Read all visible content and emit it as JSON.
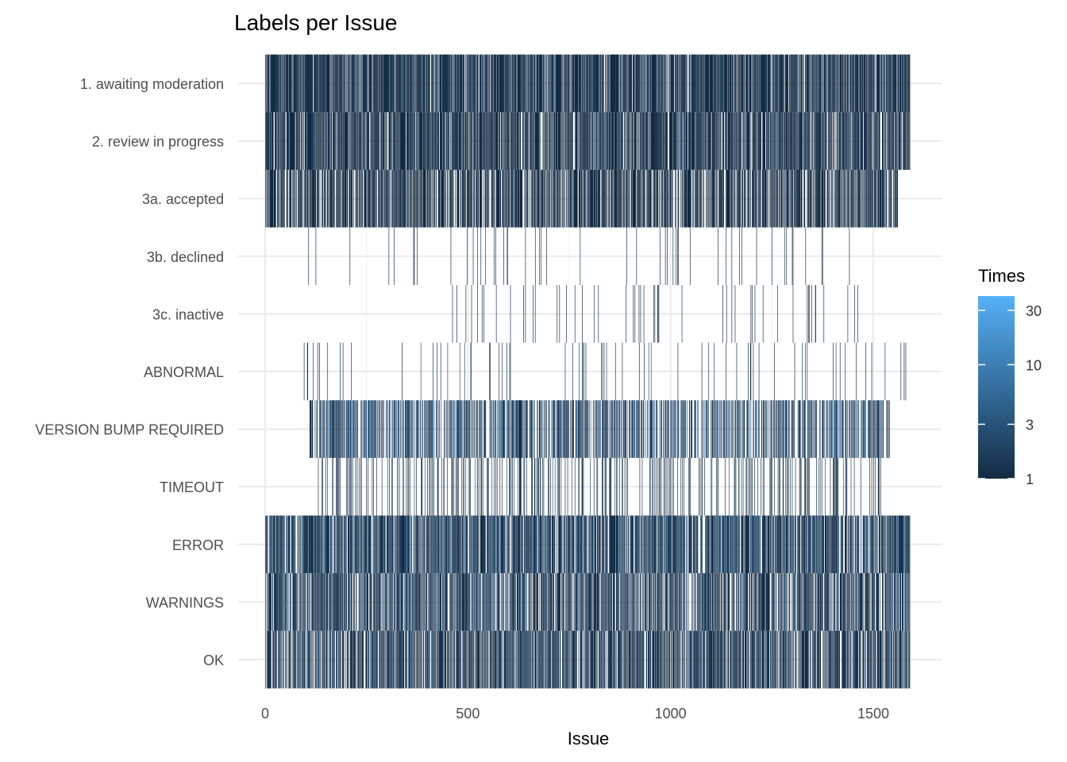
{
  "chart_data": {
    "type": "heatmap",
    "title": "Labels per Issue",
    "xlabel": "Issue",
    "ylabel": "",
    "x_range": [
      1,
      1590
    ],
    "x_ticks": [
      0,
      500,
      1000,
      1500
    ],
    "y_categories": [
      "1. awaiting moderation",
      "2. review in progress",
      "3a. accepted",
      "3b. declined",
      "3c. inactive",
      "ABNORMAL",
      "VERSION BUMP REQUIRED",
      "TIMEOUT",
      "ERROR",
      "WARNINGS",
      "OK"
    ],
    "legend": {
      "title": "Times",
      "scale": "log",
      "ticks": [
        1,
        3,
        10,
        30
      ],
      "range": [
        1,
        40
      ],
      "color_low": "#132B43",
      "color_high": "#56B1F7",
      "placement": "right"
    },
    "rows": [
      {
        "label": "1. awaiting moderation",
        "density": 0.8,
        "x_start": 1,
        "x_end": 1590,
        "value_range": [
          1,
          2
        ]
      },
      {
        "label": "2. review in progress",
        "density": 0.75,
        "x_start": 1,
        "x_end": 1590,
        "value_range": [
          1,
          2
        ]
      },
      {
        "label": "3a. accepted",
        "density": 0.62,
        "x_start": 1,
        "x_end": 1560,
        "value_range": [
          1,
          1
        ]
      },
      {
        "label": "3b. declined",
        "density": 0.03,
        "x_start": 40,
        "x_end": 1475,
        "value_range": [
          1,
          1
        ]
      },
      {
        "label": "3c. inactive",
        "density": 0.04,
        "x_start": 450,
        "x_end": 1470,
        "value_range": [
          1,
          1
        ]
      },
      {
        "label": "ABNORMAL",
        "density": 0.05,
        "x_start": 50,
        "x_end": 1580,
        "value_range": [
          1,
          2
        ]
      },
      {
        "label": "VERSION BUMP REQUIRED",
        "density": 0.5,
        "x_start": 110,
        "x_end": 1540,
        "value_range": [
          1,
          8
        ]
      },
      {
        "label": "TIMEOUT",
        "density": 0.2,
        "x_start": 130,
        "x_end": 1520,
        "value_range": [
          1,
          3
        ]
      },
      {
        "label": "ERROR",
        "density": 0.72,
        "x_start": 1,
        "x_end": 1590,
        "value_range": [
          1,
          5
        ]
      },
      {
        "label": "WARNINGS",
        "density": 0.62,
        "x_start": 1,
        "x_end": 1590,
        "value_range": [
          1,
          4
        ]
      },
      {
        "label": "OK",
        "density": 0.66,
        "x_start": 1,
        "x_end": 1590,
        "value_range": [
          1,
          3
        ]
      }
    ]
  }
}
